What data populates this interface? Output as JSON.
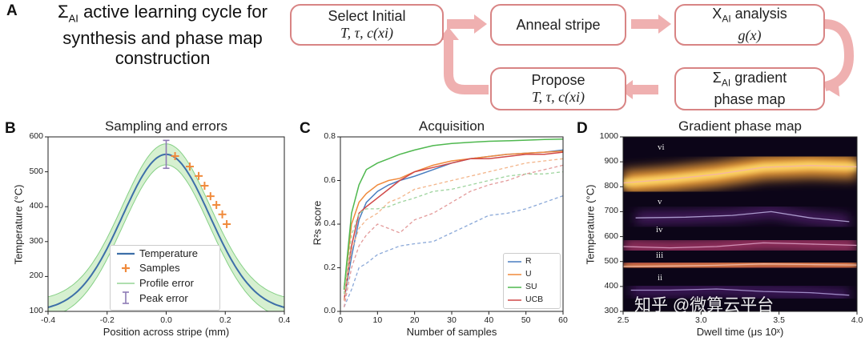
{
  "panels": {
    "a": {
      "letter": "A",
      "title": "ΣAI active learning cycle for synthesis and phase map construction",
      "title_line1": "active learning cycle for",
      "title_line2": "synthesis and phase map",
      "title_line3": "construction",
      "sigma": "Σ",
      "sigma_sub": "AI"
    },
    "b": {
      "letter": "B",
      "title": "Sampling and errors"
    },
    "c": {
      "letter": "C",
      "title": "Acquisition"
    },
    "d": {
      "letter": "D",
      "title": "Gradient phase map"
    }
  },
  "cycle": {
    "select": {
      "line1": "Select Initial",
      "line2": "T, τ, c(xi)"
    },
    "anneal": {
      "line1": "Anneal stripe"
    },
    "analysis": {
      "line1": "XAI analysis",
      "line2": "g(x)",
      "prefix": "X",
      "sub": "AI",
      "rest": " analysis"
    },
    "gradient": {
      "line1": "ΣAI gradient",
      "line2": "phase map",
      "prefix": "Σ",
      "sub": "AI",
      "rest": " gradient"
    },
    "propose": {
      "line1": "Propose",
      "line2": "T, τ, c(xi)"
    }
  },
  "chart_data": [
    {
      "type": "line",
      "title": "Sampling and errors",
      "xlabel": "Position across stripe (mm)",
      "ylabel": "Temperature (°C)",
      "xlim": [
        -0.4,
        0.4
      ],
      "ylim": [
        100,
        600
      ],
      "xticks": [
        "-0.4",
        "-0.2",
        "0.0",
        "0.2",
        "0.4"
      ],
      "yticks": [
        "100",
        "200",
        "300",
        "400",
        "500",
        "600"
      ],
      "peak_temperature": 550,
      "profile_error_band": 30,
      "peak_error": {
        "x": 0.0,
        "low": 510,
        "high": 590
      },
      "samples": {
        "x": [
          0.03,
          0.08,
          0.11,
          0.13,
          0.15,
          0.17,
          0.19,
          0.205
        ],
        "y": [
          545,
          515,
          488,
          460,
          430,
          405,
          378,
          350
        ]
      },
      "legend": [
        "Temperature",
        "Samples",
        "Profile error",
        "Peak error"
      ]
    },
    {
      "type": "line",
      "title": "Acquisition",
      "xlabel": "Number of samples",
      "ylabel": "R²s score",
      "xlim": [
        0,
        60
      ],
      "ylim": [
        0,
        0.8
      ],
      "xticks": [
        "0",
        "10",
        "20",
        "30",
        "40",
        "50",
        "60"
      ],
      "yticks": [
        "0.0",
        "0.2",
        "0.4",
        "0.6",
        "0.8"
      ],
      "legend": [
        "R",
        "U",
        "SU",
        "UCB"
      ],
      "series": [
        {
          "name": "R",
          "style": "solid",
          "x": [
            1,
            3,
            5,
            7,
            10,
            13,
            16,
            20,
            25,
            30,
            35,
            40,
            45,
            50,
            55,
            60
          ],
          "y": [
            0.05,
            0.25,
            0.42,
            0.5,
            0.55,
            0.58,
            0.6,
            0.62,
            0.65,
            0.68,
            0.7,
            0.71,
            0.72,
            0.725,
            0.73,
            0.74
          ]
        },
        {
          "name": "U",
          "style": "solid",
          "x": [
            1,
            3,
            5,
            7,
            10,
            13,
            16,
            20,
            25,
            30,
            35,
            40,
            45,
            50,
            55,
            60
          ],
          "y": [
            0.1,
            0.4,
            0.5,
            0.54,
            0.58,
            0.6,
            0.61,
            0.64,
            0.67,
            0.69,
            0.7,
            0.71,
            0.72,
            0.725,
            0.73,
            0.735
          ]
        },
        {
          "name": "SU",
          "style": "solid",
          "x": [
            1,
            3,
            5,
            7,
            10,
            13,
            16,
            20,
            25,
            30,
            35,
            40,
            45,
            50,
            55,
            60
          ],
          "y": [
            0.1,
            0.45,
            0.58,
            0.65,
            0.68,
            0.7,
            0.72,
            0.74,
            0.76,
            0.77,
            0.775,
            0.78,
            0.782,
            0.785,
            0.788,
            0.79
          ]
        },
        {
          "name": "UCB",
          "style": "solid",
          "x": [
            1,
            3,
            5,
            7,
            10,
            13,
            16,
            20,
            25,
            30,
            35,
            40,
            45,
            50,
            55,
            60
          ],
          "y": [
            0.05,
            0.3,
            0.45,
            0.48,
            0.52,
            0.56,
            0.6,
            0.64,
            0.66,
            0.68,
            0.7,
            0.7,
            0.71,
            0.72,
            0.72,
            0.73
          ]
        },
        {
          "name": "R-dashed",
          "style": "dashed",
          "x": [
            1,
            3,
            5,
            7,
            10,
            13,
            16,
            20,
            25,
            30,
            35,
            40,
            45,
            50,
            55,
            60
          ],
          "y": [
            0.02,
            0.1,
            0.2,
            0.22,
            0.26,
            0.28,
            0.3,
            0.31,
            0.32,
            0.36,
            0.4,
            0.44,
            0.45,
            0.47,
            0.5,
            0.53
          ]
        },
        {
          "name": "U-dashed",
          "style": "dashed",
          "x": [
            1,
            3,
            5,
            7,
            10,
            13,
            16,
            20,
            25,
            30,
            35,
            40,
            45,
            50,
            55,
            60
          ],
          "y": [
            0.05,
            0.28,
            0.38,
            0.42,
            0.45,
            0.5,
            0.52,
            0.56,
            0.58,
            0.6,
            0.62,
            0.64,
            0.66,
            0.68,
            0.69,
            0.7
          ]
        },
        {
          "name": "SU-dashed",
          "style": "dashed",
          "x": [
            1,
            3,
            5,
            7,
            10,
            13,
            16,
            20,
            25,
            30,
            35,
            40,
            45,
            50,
            55,
            60
          ],
          "y": [
            0.08,
            0.35,
            0.45,
            0.47,
            0.47,
            0.48,
            0.5,
            0.52,
            0.55,
            0.56,
            0.58,
            0.6,
            0.62,
            0.63,
            0.63,
            0.64
          ]
        },
        {
          "name": "UCB-dashed",
          "style": "dashed",
          "x": [
            1,
            3,
            5,
            7,
            10,
            13,
            16,
            20,
            25,
            30,
            35,
            40,
            45,
            50,
            55,
            60
          ],
          "y": [
            0.02,
            0.2,
            0.3,
            0.35,
            0.4,
            0.38,
            0.36,
            0.42,
            0.45,
            0.5,
            0.55,
            0.58,
            0.6,
            0.63,
            0.65,
            0.67
          ]
        }
      ]
    },
    {
      "type": "heatmap",
      "title": "Gradient phase map",
      "xlabel": "Dwell time (μs 10ˣ)",
      "ylabel": "Temperature (°C)",
      "xlim": [
        2.5,
        4.0
      ],
      "ylim": [
        300,
        1000
      ],
      "xticks": [
        "2.5",
        "3.0",
        "3.5",
        "4.0"
      ],
      "yticks": [
        "300",
        "400",
        "500",
        "600",
        "700",
        "800",
        "900",
        "1000"
      ],
      "phases": [
        "vi",
        "v",
        "iv",
        "iii",
        "ii"
      ],
      "boundaries": [
        {
          "x": [
            2.5,
            2.8,
            3.1,
            3.4,
            3.7,
            4.0
          ],
          "y": [
            815,
            830,
            850,
            878,
            885,
            880
          ]
        },
        {
          "x": [
            2.58,
            2.9,
            3.2,
            3.45,
            3.7,
            3.95
          ],
          "y": [
            675,
            678,
            685,
            700,
            675,
            660
          ]
        },
        {
          "x": [
            2.5,
            2.8,
            3.1,
            3.4,
            3.7,
            4.0
          ],
          "y": [
            560,
            555,
            560,
            575,
            570,
            565
          ]
        },
        {
          "x": [
            2.5,
            2.8,
            3.1,
            3.4,
            3.7,
            4.0
          ],
          "y": [
            480,
            482,
            485,
            490,
            488,
            486
          ]
        },
        {
          "x": [
            2.55,
            2.8,
            3.1,
            3.4,
            3.7,
            3.95
          ],
          "y": [
            385,
            385,
            390,
            380,
            375,
            365
          ]
        }
      ]
    }
  ],
  "watermark": "知乎 @微算云平台"
}
